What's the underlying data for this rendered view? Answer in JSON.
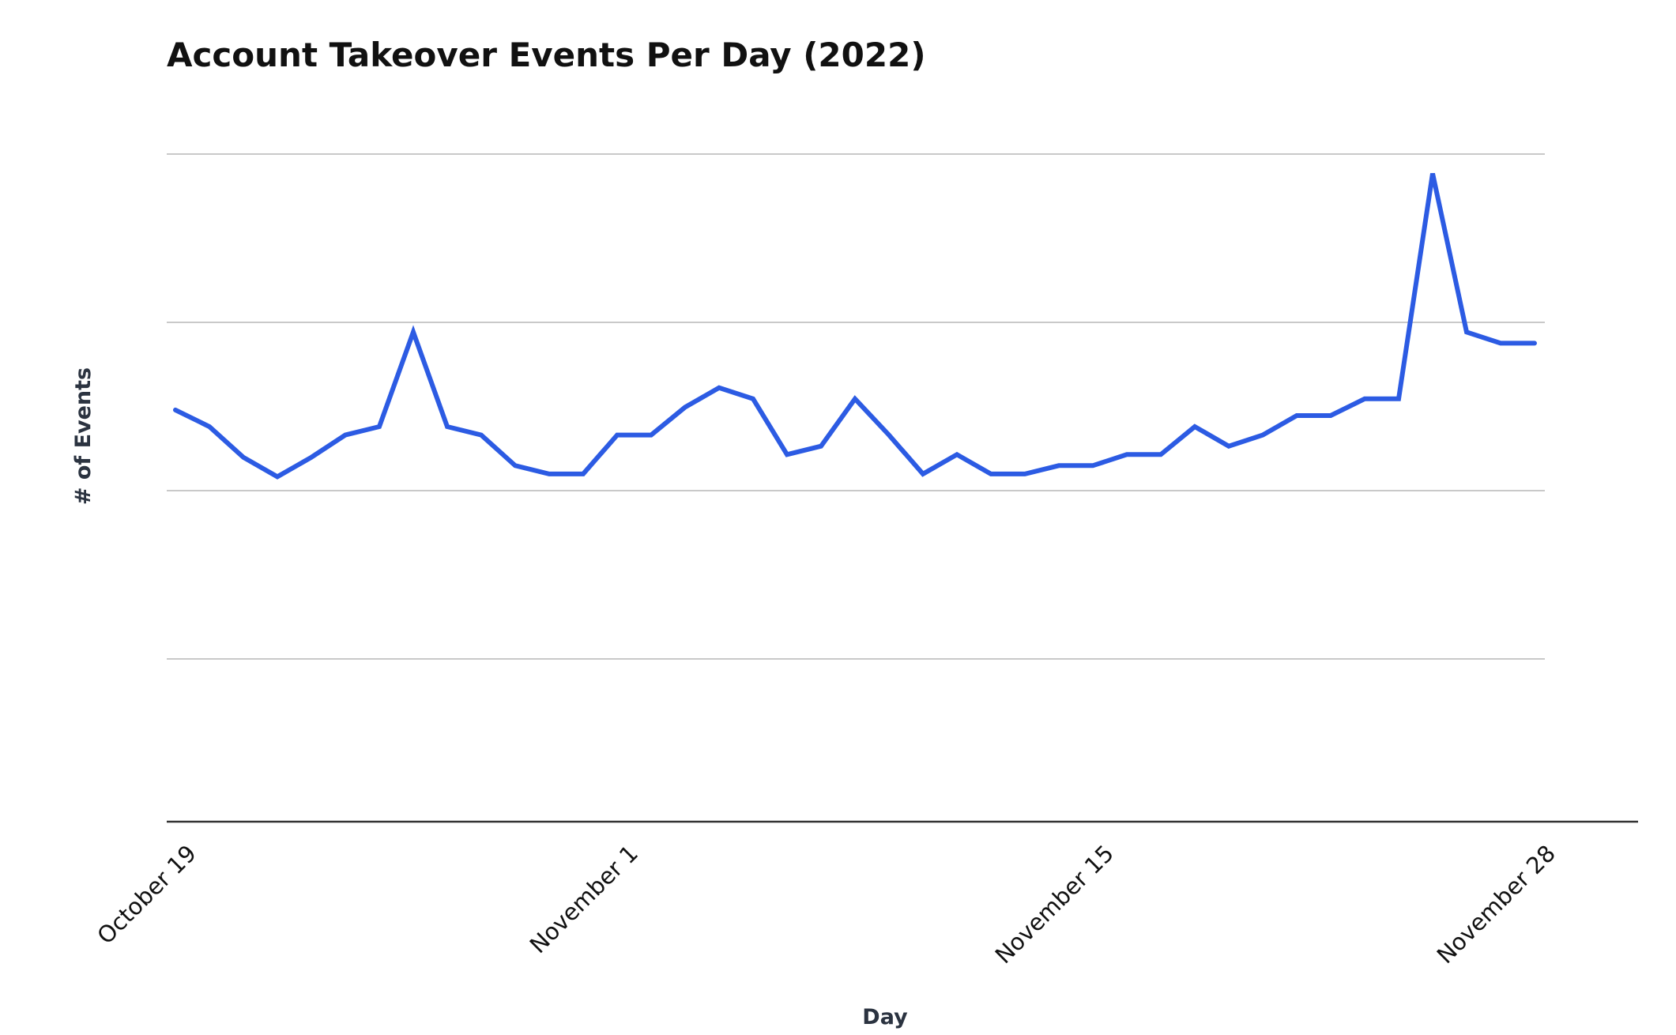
{
  "chart_data": {
    "type": "line",
    "title": "Account Takeover Events Per Day (2022)",
    "xlabel": "Day",
    "ylabel": "# of Events",
    "x_ticks": [
      "October 19",
      "November 1",
      "November 15",
      "November 28"
    ],
    "y_ticks_labeled": false,
    "grid": true,
    "legend": "none",
    "color": "#2c5be3",
    "series": [
      {
        "values": [
          15.4,
          15.1,
          14.55,
          14.2,
          14.55,
          14.95,
          15.1,
          16.8,
          15.1,
          14.95,
          14.4,
          14.25,
          14.25,
          14.95,
          14.95,
          15.45,
          15.8,
          15.6,
          14.6,
          14.75,
          15.6,
          14.95,
          14.25,
          14.6,
          14.25,
          14.25,
          14.4,
          14.4,
          14.6,
          14.6,
          15.1,
          14.75,
          14.95,
          15.3,
          15.3,
          15.6,
          15.6,
          19.65,
          16.8,
          16.6,
          16.6
        ]
      }
    ]
  }
}
